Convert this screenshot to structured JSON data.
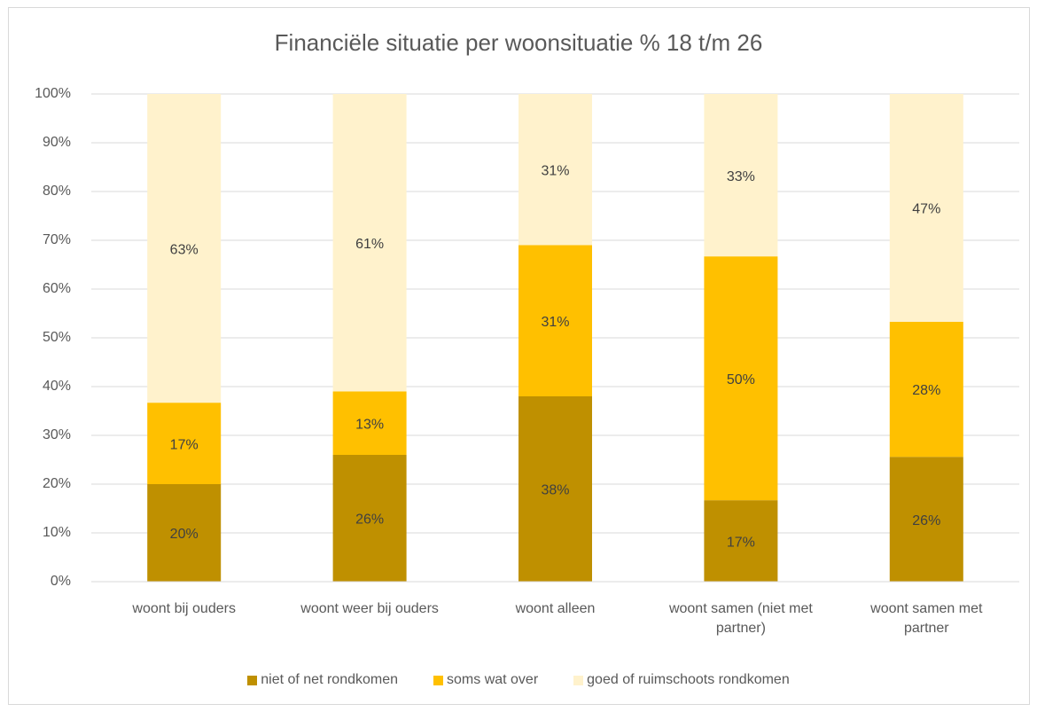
{
  "chart_data": {
    "type": "stacked_bar",
    "title": "Financiële situatie per woonsituatie % 18 t/m 26",
    "categories": [
      "woont bij ouders",
      "woont weer bij ouders",
      "woont alleen",
      "woont samen (niet met partner)",
      "woont samen met partner"
    ],
    "series": [
      {
        "name": "niet of net rondkomen",
        "color": "#bf9000",
        "values": [
          20,
          26,
          38,
          16.7,
          25.6
        ],
        "value_labels": [
          "20%",
          "26%",
          "38%",
          "17%",
          "26%"
        ]
      },
      {
        "name": "soms wat over",
        "color": "#ffc000",
        "values": [
          16.7,
          13,
          31,
          50,
          27.7
        ],
        "value_labels": [
          "17%",
          "13%",
          "31%",
          "50%",
          "28%"
        ]
      },
      {
        "name": "goed of ruimschoots rondkomen",
        "color": "#fff2cc",
        "values": [
          63.3,
          61,
          31,
          33.3,
          46.7
        ],
        "value_labels": [
          "63%",
          "61%",
          "31%",
          "33%",
          "47%"
        ]
      }
    ],
    "ylim": [
      0,
      100
    ],
    "yticks": [
      {
        "value": 0,
        "label": "0%"
      },
      {
        "value": 10,
        "label": "10%"
      },
      {
        "value": 20,
        "label": "20%"
      },
      {
        "value": 30,
        "label": "30%"
      },
      {
        "value": 40,
        "label": "40%"
      },
      {
        "value": 50,
        "label": "50%"
      },
      {
        "value": 60,
        "label": "60%"
      },
      {
        "value": 70,
        "label": "70%"
      },
      {
        "value": 80,
        "label": "80%"
      },
      {
        "value": 90,
        "label": "90%"
      },
      {
        "value": 100,
        "label": "100%"
      }
    ],
    "grid": true,
    "legend": "bottom"
  }
}
